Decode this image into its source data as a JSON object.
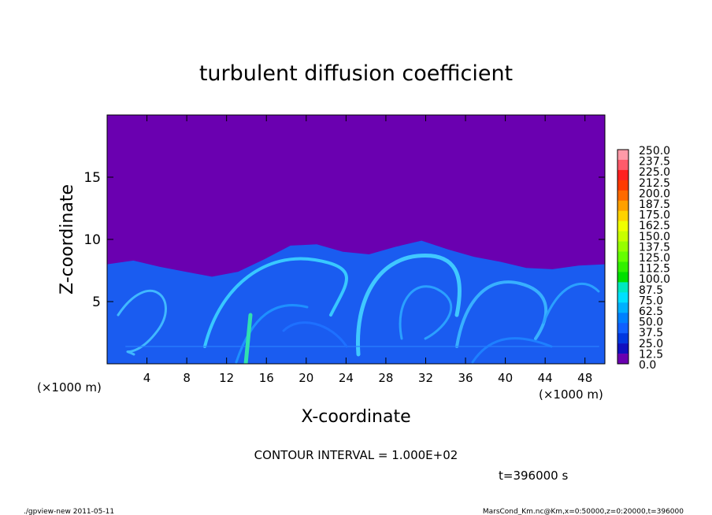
{
  "chart_data": {
    "type": "heatmap",
    "title": "turbulent diffusion coefficient",
    "xlabel": "X-coordinate",
    "ylabel": "Z-coordinate",
    "x_unit": "(×1000 m)",
    "y_unit": "(×1000 m)",
    "xlim": [
      0,
      50
    ],
    "ylim": [
      0,
      20
    ],
    "x_ticks": [
      "4",
      "8",
      "12",
      "16",
      "20",
      "24",
      "28",
      "32",
      "36",
      "40",
      "44",
      "48"
    ],
    "x_tick_values": [
      4,
      8,
      12,
      16,
      20,
      24,
      28,
      32,
      36,
      40,
      44,
      48
    ],
    "y_ticks": [
      "5",
      "10",
      "15"
    ],
    "y_tick_values": [
      5,
      10,
      15
    ],
    "colorbar_labels": [
      "250.0",
      "237.5",
      "225.0",
      "212.5",
      "200.0",
      "187.5",
      "175.0",
      "162.5",
      "150.0",
      "137.5",
      "125.0",
      "112.5",
      "100.0",
      "87.5",
      "75.0",
      "62.5",
      "50.0",
      "37.5",
      "25.0",
      "12.5",
      "0.0"
    ],
    "colorbar_colors": [
      "#ff9aa8",
      "#ff5a6a",
      "#ff2020",
      "#ff3a00",
      "#ff6a00",
      "#ffa000",
      "#ffd200",
      "#f0ff00",
      "#c8ff00",
      "#96ff00",
      "#64ff00",
      "#32f000",
      "#00e000",
      "#00e8c0",
      "#00e0ff",
      "#00b0ff",
      "#0080ff",
      "#1060ff",
      "#0038e0",
      "#1010c0",
      "#6a00b0"
    ],
    "background_color": "#6a00b0",
    "field_color": "#1a5cf0",
    "contour_interval": "CONTOUR INTERVAL = 1.000E+02",
    "time_label": "t=396000 s",
    "turbulent_layer_top_km": 8
  },
  "footer": {
    "left": "./gpview-new  2011-05-11",
    "right": "MarsCond_Km.nc@Km,x=0:50000,z=0:20000,t=396000"
  }
}
